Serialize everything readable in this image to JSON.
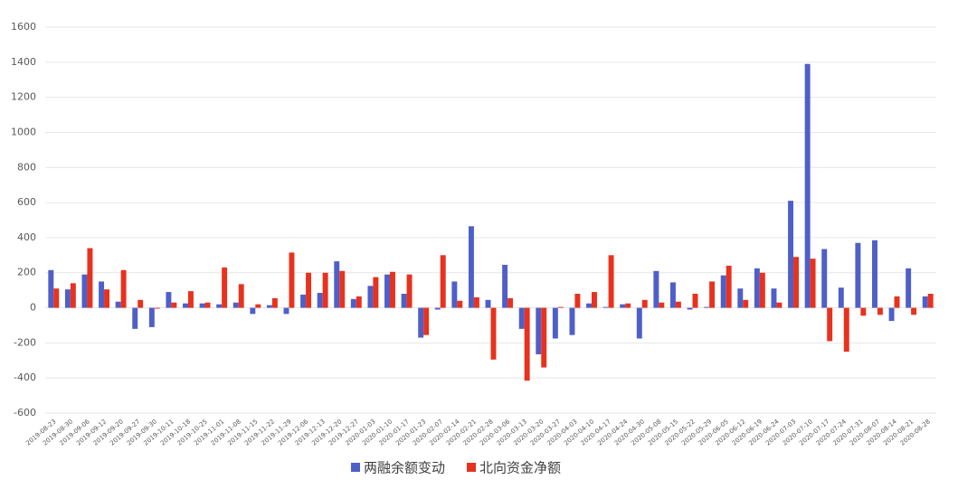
{
  "chart_data": {
    "type": "bar",
    "categories": [
      "2019-08-23",
      "2019-08-30",
      "2019-09-06",
      "2019-09-12",
      "2019-09-20",
      "2019-09-27",
      "2019-09-30",
      "2019-10-11",
      "2019-10-18",
      "2019-10-25",
      "2019-11-01",
      "2019-11-08",
      "2019-11-15",
      "2019-11-22",
      "2019-11-29",
      "2019-12-06",
      "2019-12-13",
      "2019-12-20",
      "2019-12-27",
      "2020-01-03",
      "2020-01-10",
      "2020-01-17",
      "2020-01-23",
      "2020-02-07",
      "2020-02-14",
      "2020-02-21",
      "2020-02-28",
      "2020-03-06",
      "2020-03-13",
      "2020-03-20",
      "2020-03-27",
      "2020-04-03",
      "2020-04-10",
      "2020-04-17",
      "2020-04-24",
      "2020-04-30",
      "2020-05-08",
      "2020-05-15",
      "2020-05-22",
      "2020-05-29",
      "2020-06-05",
      "2020-06-12",
      "2020-06-19",
      "2020-06-24",
      "2020-07-03",
      "2020-07-10",
      "2020-07-17",
      "2020-07-24",
      "2020-07-31",
      "2020-08-07",
      "2020-08-14",
      "2020-08-21",
      "2020-08-28"
    ],
    "series": [
      {
        "name": "两融余额变动",
        "color": "#4f5fc8",
        "values": [
          215,
          105,
          190,
          150,
          35,
          -120,
          -110,
          90,
          25,
          25,
          20,
          30,
          -35,
          15,
          -35,
          75,
          85,
          265,
          50,
          125,
          190,
          80,
          -170,
          -10,
          150,
          465,
          45,
          245,
          -120,
          -265,
          -175,
          -155,
          25,
          5,
          20,
          -175,
          210,
          145,
          -10,
          5,
          185,
          110,
          225,
          110,
          610,
          1390,
          335,
          115,
          370,
          385,
          -75,
          225,
          65
        ]
      },
      {
        "name": "北向资金净额",
        "color": "#e8321e",
        "values": [
          110,
          140,
          340,
          105,
          215,
          45,
          -5,
          30,
          95,
          30,
          230,
          135,
          20,
          55,
          315,
          200,
          200,
          210,
          65,
          175,
          205,
          190,
          -155,
          300,
          40,
          60,
          -295,
          55,
          -415,
          -340,
          5,
          80,
          90,
          300,
          25,
          45,
          30,
          35,
          80,
          150,
          240,
          45,
          200,
          30,
          290,
          280,
          -190,
          -250,
          -45,
          -40,
          65,
          -40,
          80
        ]
      }
    ],
    "ylim": [
      -600,
      1600
    ],
    "yticks": [
      -600,
      -400,
      -200,
      0,
      200,
      400,
      600,
      800,
      1000,
      1200,
      1400,
      1600
    ],
    "grid": true
  }
}
